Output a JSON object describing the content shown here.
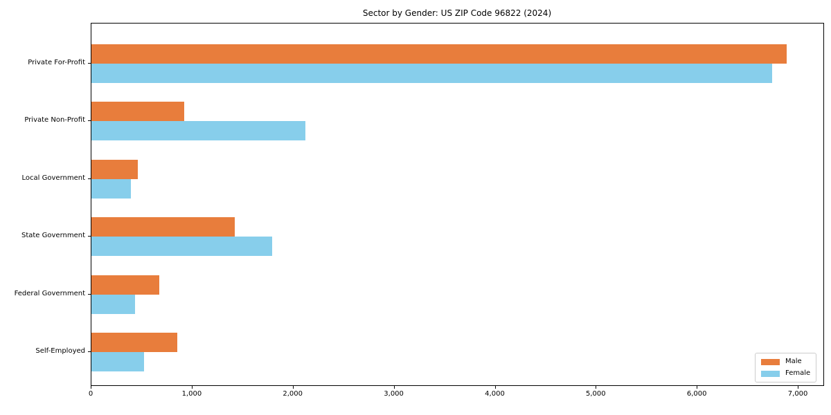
{
  "title": "Sector by Gender: US ZIP Code 96822 (2024)",
  "chart_data": {
    "type": "bar",
    "orientation": "horizontal",
    "title": "Sector by Gender: US ZIP Code 96822 (2024)",
    "categories": [
      "Private For-Profit",
      "Private Non-Profit",
      "Local Government",
      "State Government",
      "Federal Government",
      "Self-Employed"
    ],
    "series": [
      {
        "name": "Male",
        "color": "#E87D3C",
        "values": [
          6880,
          920,
          460,
          1420,
          670,
          850
        ]
      },
      {
        "name": "Female",
        "color": "#87CEEB",
        "values": [
          6740,
          2120,
          390,
          1790,
          430,
          520
        ]
      }
    ],
    "xlabel": "",
    "ylabel": "",
    "xlim": [
      0,
      7260
    ],
    "x_ticks": [
      0,
      1000,
      2000,
      3000,
      4000,
      5000,
      6000,
      7000
    ],
    "x_tick_labels": [
      "0",
      "1,000",
      "2,000",
      "3,000",
      "4,000",
      "5,000",
      "6,000",
      "7,000"
    ],
    "grid": false,
    "legend": {
      "position": "lower right",
      "entries": [
        {
          "label": "Male",
          "color": "#E87D3C"
        },
        {
          "label": "Female",
          "color": "#87CEEB"
        }
      ]
    }
  }
}
